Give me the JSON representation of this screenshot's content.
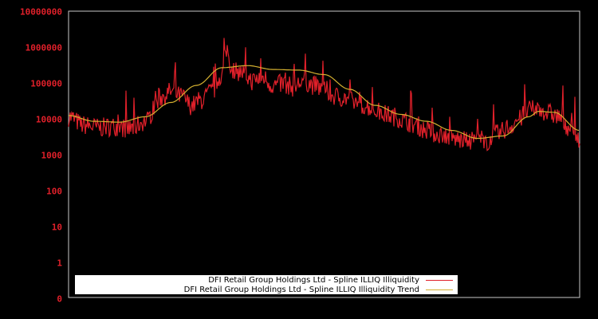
{
  "chart_data": {
    "type": "line",
    "title": "",
    "xlabel": "",
    "ylabel": "",
    "yscale": "log",
    "y_tick_labels": [
      "10000000",
      "1000000",
      "100000",
      "10000",
      "1000",
      "100",
      "10",
      "1",
      "0"
    ],
    "y_tick_values": [
      10000000,
      1000000,
      100000,
      10000,
      1000,
      100,
      10,
      1,
      0
    ],
    "ylim": [
      0,
      10000000
    ],
    "x_ticks": [],
    "grid": false,
    "legend_position": "lower center",
    "series": [
      {
        "name": "DFI Retail Group Holdings Ltd - Spline ILLIQ Illiquidity",
        "color": "#e0202a",
        "x_fraction": [
          0.0,
          0.03,
          0.06,
          0.09,
          0.12,
          0.15,
          0.18,
          0.2,
          0.22,
          0.24,
          0.26,
          0.28,
          0.3,
          0.31,
          0.32,
          0.34,
          0.36,
          0.38,
          0.4,
          0.42,
          0.44,
          0.46,
          0.48,
          0.5,
          0.52,
          0.54,
          0.56,
          0.58,
          0.6,
          0.62,
          0.64,
          0.66,
          0.68,
          0.7,
          0.72,
          0.74,
          0.76,
          0.78,
          0.8,
          0.82,
          0.84,
          0.86,
          0.88,
          0.9,
          0.92,
          0.94,
          0.96,
          0.98,
          1.0
        ],
        "values": [
          12000,
          7000,
          6000,
          6500,
          5500,
          9000,
          40000,
          60000,
          45000,
          25000,
          35000,
          60000,
          180000,
          900000,
          250000,
          200000,
          120000,
          150000,
          90000,
          100000,
          80000,
          120000,
          90000,
          70000,
          45000,
          40000,
          30000,
          25000,
          18000,
          14000,
          12000,
          9000,
          7000,
          5000,
          4000,
          3500,
          2800,
          2500,
          3000,
          2500,
          4000,
          6000,
          10000,
          18000,
          20000,
          15000,
          12000,
          6000,
          3000
        ]
      },
      {
        "name": "DFI Retail Group Holdings Ltd - Spline ILLIQ Illiquidity Trend",
        "color": "#d4b030",
        "x_fraction": [
          0.0,
          0.05,
          0.1,
          0.15,
          0.2,
          0.25,
          0.3,
          0.35,
          0.4,
          0.45,
          0.5,
          0.55,
          0.6,
          0.65,
          0.7,
          0.75,
          0.8,
          0.85,
          0.9,
          0.92,
          0.95,
          1.0
        ],
        "values": [
          13000,
          9000,
          8500,
          12000,
          30000,
          90000,
          280000,
          320000,
          250000,
          240000,
          180000,
          70000,
          25000,
          14000,
          9000,
          5000,
          3000,
          3500,
          12000,
          17000,
          16000,
          5000
        ]
      }
    ]
  },
  "legend": {
    "items": [
      {
        "label": "DFI Retail Group Holdings Ltd - Spline ILLIQ Illiquidity",
        "color": "#e0202a"
      },
      {
        "label": "DFI Retail Group Holdings Ltd - Spline ILLIQ Illiquidity Trend",
        "color": "#d4b030"
      }
    ]
  },
  "colors": {
    "background": "#000000",
    "axis": "#c8c8c8",
    "tick_label": "#e0202a",
    "legend_bg": "#ffffff"
  }
}
